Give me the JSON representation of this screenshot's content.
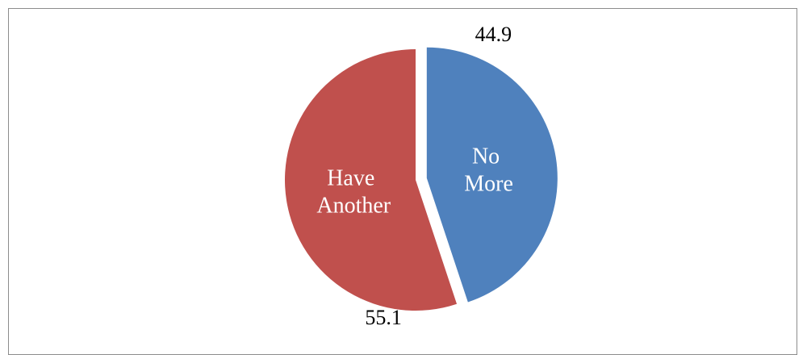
{
  "chart_data": {
    "type": "pie",
    "title": "",
    "categories": [
      "No More",
      "Have Another"
    ],
    "values": [
      44.9,
      55.1
    ],
    "data_labels": [
      "44.9",
      "55.1"
    ],
    "slice_labels": [
      [
        "No",
        "More"
      ],
      [
        "Have",
        "Another"
      ]
    ],
    "exploded": "No More",
    "legend": "none",
    "colors": [
      "#4F81BD",
      "#C0504D"
    ]
  }
}
